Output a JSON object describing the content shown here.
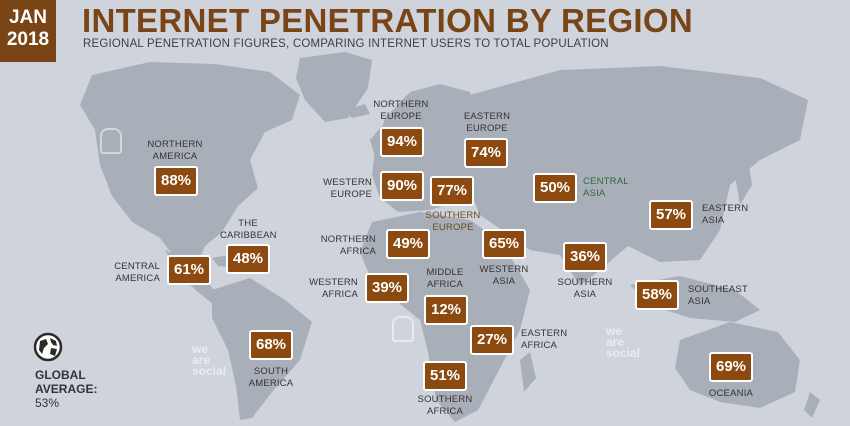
{
  "date_badge": {
    "month": "JAN",
    "year": "2018"
  },
  "title": "INTERNET PENETRATION BY REGION",
  "subtitle": "REGIONAL PENETRATION FIGURES, COMPARING INTERNET USERS TO TOTAL POPULATION",
  "regions": {
    "northern_america": {
      "label_lines": [
        "NORTHERN",
        "AMERICA"
      ],
      "value": "88%"
    },
    "central_america": {
      "label_lines": [
        "CENTRAL",
        "AMERICA"
      ],
      "value": "61%"
    },
    "caribbean": {
      "label_lines": [
        "THE",
        "CARIBBEAN"
      ],
      "value": "48%"
    },
    "south_america": {
      "label_lines": [
        "SOUTH",
        "AMERICA"
      ],
      "value": "68%"
    },
    "northern_europe": {
      "label_lines": [
        "NORTHERN",
        "EUROPE"
      ],
      "value": "94%"
    },
    "western_europe": {
      "label_lines": [
        "WESTERN",
        "EUROPE"
      ],
      "value": "90%"
    },
    "southern_europe": {
      "label_lines": [
        "SOUTHERN",
        "EUROPE"
      ],
      "value": "77%"
    },
    "eastern_europe": {
      "label_lines": [
        "EASTERN",
        "EUROPE"
      ],
      "value": "74%"
    },
    "northern_africa": {
      "label_lines": [
        "NORTHERN",
        "AFRICA"
      ],
      "value": "49%"
    },
    "western_africa": {
      "label_lines": [
        "WESTERN",
        "AFRICA"
      ],
      "value": "39%"
    },
    "middle_africa": {
      "label_lines": [
        "MIDDLE",
        "AFRICA"
      ],
      "value": "12%"
    },
    "eastern_africa": {
      "label_lines": [
        "EASTERN",
        "AFRICA"
      ],
      "value": "27%"
    },
    "southern_africa": {
      "label_lines": [
        "SOUTHERN",
        "AFRICA"
      ],
      "value": "51%"
    },
    "western_asia": {
      "label_lines": [
        "WESTERN",
        "ASIA"
      ],
      "value": "65%"
    },
    "central_asia": {
      "label_lines": [
        "CENTRAL",
        "ASIA"
      ],
      "value": "50%"
    },
    "southern_asia": {
      "label_lines": [
        "SOUTHERN",
        "ASIA"
      ],
      "value": "36%"
    },
    "eastern_asia": {
      "label_lines": [
        "EASTERN",
        "ASIA"
      ],
      "value": "57%"
    },
    "southeast_asia": {
      "label_lines": [
        "SOUTHEAST",
        "ASIA"
      ],
      "value": "58%"
    },
    "oceania": {
      "label_lines": [
        "OCEANIA"
      ],
      "value": "69%"
    }
  },
  "global_average": {
    "label_lines": [
      "GLOBAL",
      "AVERAGE:"
    ],
    "value": "53%"
  },
  "watermark": {
    "lines": [
      "we",
      "are",
      "social"
    ]
  },
  "icons": {
    "globe": "globe-icon",
    "owl": "owl-logo-icon"
  },
  "colors": {
    "background": "#cfd4dc",
    "land": "#a9afb8",
    "brand_brown": "#7a4516",
    "box_fill": "#8c4a10",
    "central_asia_label": "#2f6b3a",
    "southern_europe_label": "#6b4a1e"
  }
}
